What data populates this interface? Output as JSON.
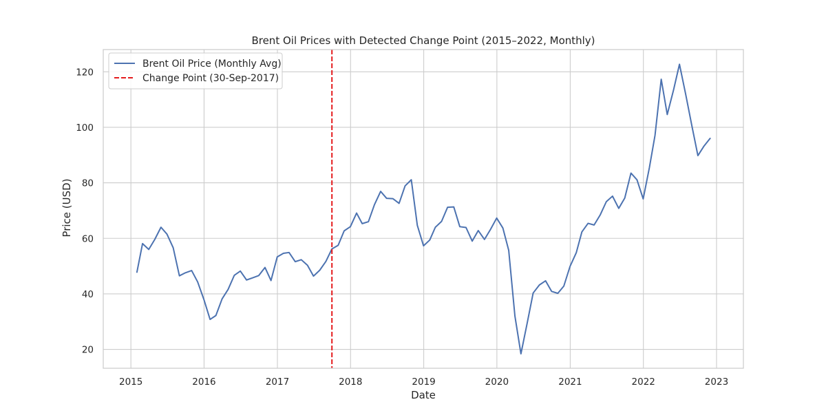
{
  "chart_data": {
    "type": "line",
    "title": "Brent Oil Prices with Detected Change Point (2015–2022, Monthly)",
    "xlabel": "Date",
    "ylabel": "Price (USD)",
    "xlim": [
      "2014-08-16",
      "2023-05-15"
    ],
    "ylim": [
      13.2,
      128.0
    ],
    "x_ticks": [
      "2015",
      "2016",
      "2017",
      "2018",
      "2019",
      "2020",
      "2021",
      "2022",
      "2023"
    ],
    "y_ticks": [
      20,
      40,
      60,
      80,
      100,
      120
    ],
    "grid": true,
    "legend_position": "top-left",
    "series": [
      {
        "name": "Brent Oil Price (Monthly Avg)",
        "color": "#4c72b0",
        "style": "solid",
        "x": [
          "2015-01-31",
          "2015-02-28",
          "2015-03-31",
          "2015-04-30",
          "2015-05-31",
          "2015-06-30",
          "2015-07-31",
          "2015-08-31",
          "2015-09-30",
          "2015-10-31",
          "2015-11-30",
          "2015-12-31",
          "2016-01-31",
          "2016-02-29",
          "2016-03-31",
          "2016-04-30",
          "2016-05-31",
          "2016-06-30",
          "2016-07-31",
          "2016-08-31",
          "2016-09-30",
          "2016-10-31",
          "2016-11-30",
          "2016-12-31",
          "2017-01-31",
          "2017-02-28",
          "2017-03-31",
          "2017-04-30",
          "2017-05-31",
          "2017-06-30",
          "2017-07-31",
          "2017-08-31",
          "2017-09-30",
          "2017-10-31",
          "2017-11-30",
          "2017-12-31",
          "2018-01-31",
          "2018-02-28",
          "2018-03-31",
          "2018-04-30",
          "2018-05-31",
          "2018-06-30",
          "2018-07-31",
          "2018-08-31",
          "2018-09-30",
          "2018-10-31",
          "2018-11-30",
          "2018-12-31",
          "2019-01-31",
          "2019-02-28",
          "2019-03-31",
          "2019-04-30",
          "2019-05-31",
          "2019-06-30",
          "2019-07-31",
          "2019-08-31",
          "2019-09-30",
          "2019-10-31",
          "2019-11-30",
          "2019-12-31",
          "2020-01-31",
          "2020-02-29",
          "2020-03-31",
          "2020-04-30",
          "2020-05-31",
          "2020-06-30",
          "2020-07-31",
          "2020-08-31",
          "2020-09-30",
          "2020-10-31",
          "2020-11-30",
          "2020-12-31",
          "2021-01-31",
          "2021-02-28",
          "2021-03-31",
          "2021-04-30",
          "2021-05-31",
          "2021-06-30",
          "2021-07-31",
          "2021-08-31",
          "2021-09-30",
          "2021-10-31",
          "2021-11-30",
          "2021-12-31",
          "2022-01-31",
          "2022-02-28",
          "2022-03-31",
          "2022-04-30",
          "2022-05-31",
          "2022-06-30",
          "2022-07-31",
          "2022-08-31",
          "2022-09-30",
          "2022-10-31",
          "2022-11-30"
        ],
        "values": [
          47.8,
          58.1,
          56.0,
          59.6,
          64.0,
          61.5,
          56.6,
          46.5,
          47.6,
          48.4,
          44.3,
          38.0,
          30.8,
          32.2,
          38.2,
          41.6,
          46.7,
          48.2,
          45.0,
          45.8,
          46.6,
          49.5,
          44.8,
          53.3,
          54.6,
          54.9,
          51.6,
          52.3,
          50.3,
          46.4,
          48.5,
          51.7,
          56.2,
          57.5,
          62.7,
          64.2,
          69.1,
          65.3,
          66.0,
          72.1,
          76.9,
          74.4,
          74.3,
          72.6,
          78.9,
          81.1,
          64.7,
          57.3,
          59.4,
          64.0,
          66.1,
          71.2,
          71.3,
          64.2,
          63.9,
          59.0,
          62.8,
          59.6,
          63.2,
          67.3,
          63.7,
          55.7,
          32.0,
          18.4,
          29.4,
          40.3,
          43.2,
          44.7,
          40.9,
          40.2,
          42.8,
          49.9,
          54.8,
          62.3,
          65.4,
          64.8,
          68.5,
          73.2,
          75.2,
          70.8,
          74.5,
          83.5,
          81.1,
          74.2,
          85.5,
          97.1,
          117.3,
          104.6,
          113.3,
          122.7,
          111.9,
          100.5,
          89.8,
          93.3,
          96.0
        ]
      },
      {
        "name": "Change Point (30-Sep-2017)",
        "color": "#e41a1c",
        "style": "dashed",
        "x_value": "2017-09-30"
      }
    ]
  }
}
